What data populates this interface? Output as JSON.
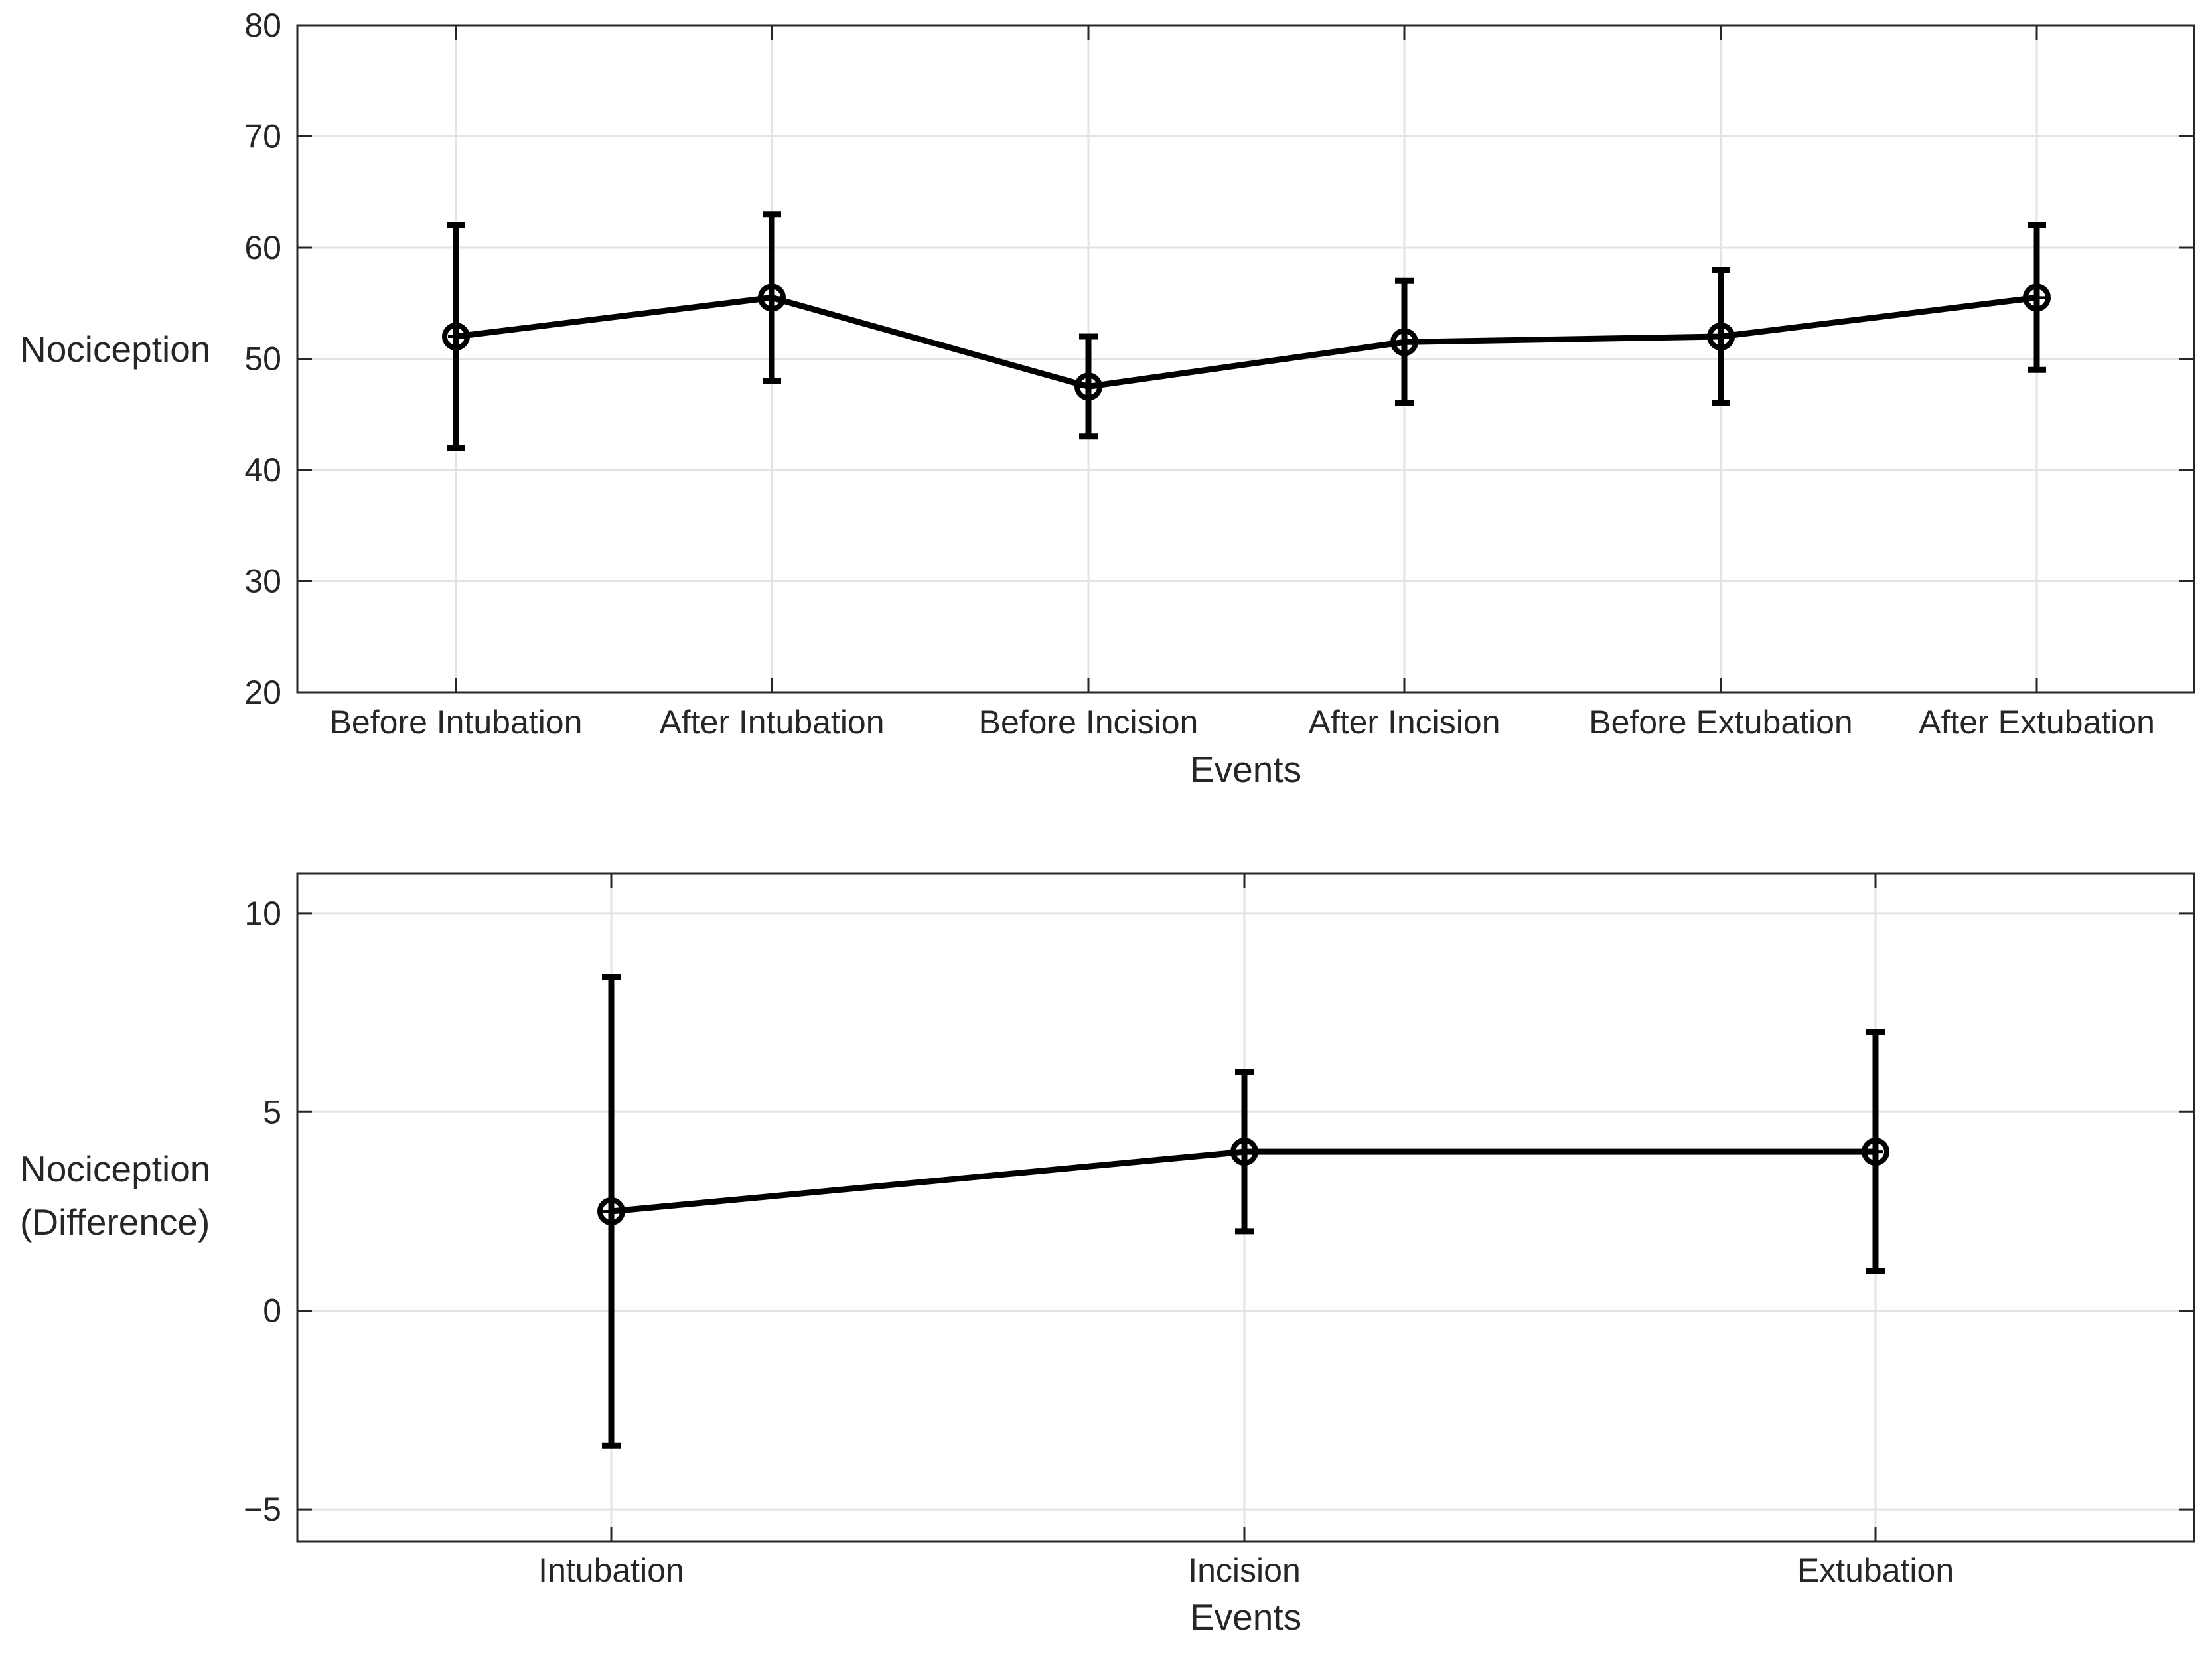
{
  "chart_data": [
    {
      "type": "line",
      "title": "",
      "xlabel": "Events",
      "ylabel": "Nociception",
      "categories": [
        "Before Intubation",
        "After Intubation",
        "Before Incision",
        "After Incision",
        "Before Extubation",
        "After Extubation"
      ],
      "series": [
        {
          "name": "Nociception",
          "values": [
            52,
            55.5,
            47.5,
            51.5,
            52,
            55.5
          ],
          "error_low": [
            42,
            48,
            43,
            46,
            46,
            49
          ],
          "error_high": [
            62,
            63,
            52,
            57,
            58,
            62
          ]
        }
      ],
      "ylim": [
        20,
        80
      ],
      "yticks": [
        20,
        30,
        40,
        50,
        60,
        70,
        80
      ],
      "grid": true
    },
    {
      "type": "line",
      "title": "",
      "xlabel": "Events",
      "ylabel": [
        "Nociception",
        "(Difference)"
      ],
      "categories": [
        "Intubation",
        "Incision",
        "Extubation"
      ],
      "series": [
        {
          "name": "Nociception (Difference)",
          "values": [
            2.5,
            4,
            4
          ],
          "error_low": [
            -3.4,
            2,
            1
          ],
          "error_high": [
            8.4,
            6,
            7
          ]
        }
      ],
      "ylim": [
        -5.8,
        11
      ],
      "yticks": [
        -5,
        0,
        5,
        10
      ],
      "ytick_labels": [
        "−5",
        "0",
        "5",
        "10"
      ],
      "grid": true
    }
  ]
}
